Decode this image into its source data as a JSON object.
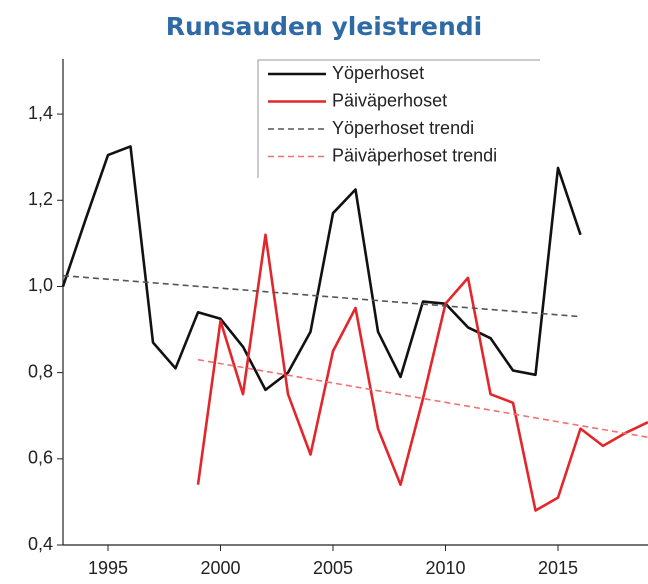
{
  "chart_data": {
    "type": "line",
    "title": "Runsauden yleistrendi",
    "xlim": [
      1993,
      2019
    ],
    "xticks": [
      1995,
      2000,
      2005,
      2010,
      2015
    ],
    "ylim": [
      0.4,
      1.5
    ],
    "yticks": [
      {
        "value": 0.4,
        "label": "0,4"
      },
      {
        "value": 0.6,
        "label": "0,6"
      },
      {
        "value": 0.8,
        "label": "0,8"
      },
      {
        "value": 1.0,
        "label": "1,0"
      },
      {
        "value": 1.2,
        "label": "1,2"
      },
      {
        "value": 1.4,
        "label": "1,4"
      }
    ],
    "grid": false,
    "legend": "upper right",
    "series": [
      {
        "name": "Yöperhoset",
        "color": "#111111",
        "dash": false,
        "x": [
          1993,
          1994,
          1995,
          1996,
          1997,
          1998,
          1999,
          2000,
          2001,
          2002,
          2003,
          2004,
          2005,
          2006,
          2007,
          2008,
          2009,
          2010,
          2011,
          2012,
          2013,
          2014,
          2015,
          2016
        ],
        "values": [
          1.0,
          1.155,
          1.305,
          1.325,
          0.87,
          0.81,
          0.94,
          0.925,
          0.86,
          0.76,
          0.8,
          0.895,
          1.17,
          1.225,
          0.895,
          0.79,
          0.965,
          0.96,
          0.905,
          0.88,
          0.805,
          0.795,
          1.275,
          1.12
        ]
      },
      {
        "name": "Päiväperhoset",
        "color": "#e3262b",
        "dash": false,
        "x": [
          1999,
          2000,
          2001,
          2002,
          2003,
          2004,
          2005,
          2006,
          2007,
          2008,
          2009,
          2010,
          2011,
          2012,
          2013,
          2014,
          2015,
          2016,
          2017,
          2018,
          2019
        ],
        "values": [
          0.54,
          0.92,
          0.75,
          1.12,
          0.75,
          0.61,
          0.85,
          0.95,
          0.67,
          0.54,
          0.74,
          0.96,
          1.02,
          0.75,
          0.73,
          0.48,
          0.51,
          0.67,
          0.63,
          0.66,
          0.685
        ]
      },
      {
        "name": "Yöperhoset trendi",
        "color": "#555555",
        "dash": true,
        "x": [
          1993,
          2016
        ],
        "values": [
          1.025,
          0.93
        ]
      },
      {
        "name": "Päiväperhoset trendi",
        "color": "#f07272",
        "dash": true,
        "x": [
          1999,
          2019
        ],
        "values": [
          0.83,
          0.65
        ]
      }
    ]
  }
}
